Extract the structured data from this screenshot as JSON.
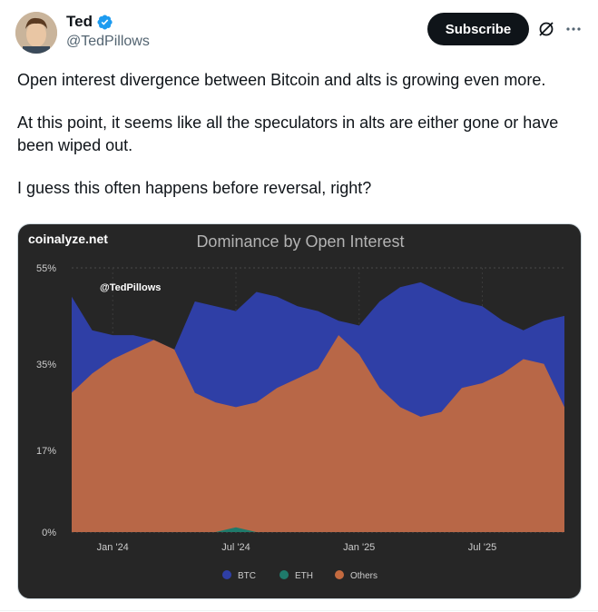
{
  "author": {
    "name": "Ted",
    "handle": "@TedPillows",
    "verified_color": "#1d9bf0"
  },
  "actions": {
    "subscribe_label": "Subscribe",
    "grok_icon": "grok-slash-icon",
    "more_icon": "more-dots-icon"
  },
  "tweet": {
    "paragraphs": [
      "Open interest divergence between Bitcoin and alts is growing even more.",
      "At this point, it seems like all the speculators in alts are either gone or have been wiped out.",
      "I guess this often happens before reversal, right?"
    ]
  },
  "chart_card": {
    "source": "coinalyze.net",
    "watermark": "@TedPillows",
    "background": "#262626"
  },
  "chart_data": {
    "type": "area",
    "title": "Dominance by Open Interest",
    "yticks": [
      "55%",
      "35%",
      "17%",
      "0%"
    ],
    "ytick_values": [
      55,
      35,
      17,
      0
    ],
    "ylim": [
      0,
      55
    ],
    "xticks": [
      "Jan '24",
      "Jul '24",
      "Jan '25",
      "Jul '25"
    ],
    "xtick_index": [
      2,
      8,
      14,
      20
    ],
    "x_count": 25,
    "grid": true,
    "legend_position": "bottom",
    "series": [
      {
        "name": "BTC",
        "color": "#2f3fa6",
        "values": [
          49,
          42,
          41,
          41,
          40,
          38,
          48,
          47,
          46,
          50,
          49,
          47,
          46,
          44,
          43,
          48,
          51,
          52,
          50,
          48,
          47,
          44,
          42,
          44,
          45
        ]
      },
      {
        "name": "ETH",
        "color": "#1f7a6b",
        "values": [
          0,
          0,
          0,
          0,
          0,
          0,
          0,
          0,
          1,
          0,
          0,
          0,
          0,
          0,
          0,
          0,
          0,
          0,
          0,
          0,
          0,
          0,
          0,
          0,
          0
        ]
      },
      {
        "name": "Others",
        "color": "#c46a3f",
        "values": [
          29,
          33,
          36,
          38,
          40,
          38,
          29,
          27,
          26,
          27,
          30,
          32,
          34,
          41,
          37,
          30,
          26,
          24,
          25,
          30,
          31,
          33,
          36,
          35,
          26
        ]
      }
    ]
  }
}
